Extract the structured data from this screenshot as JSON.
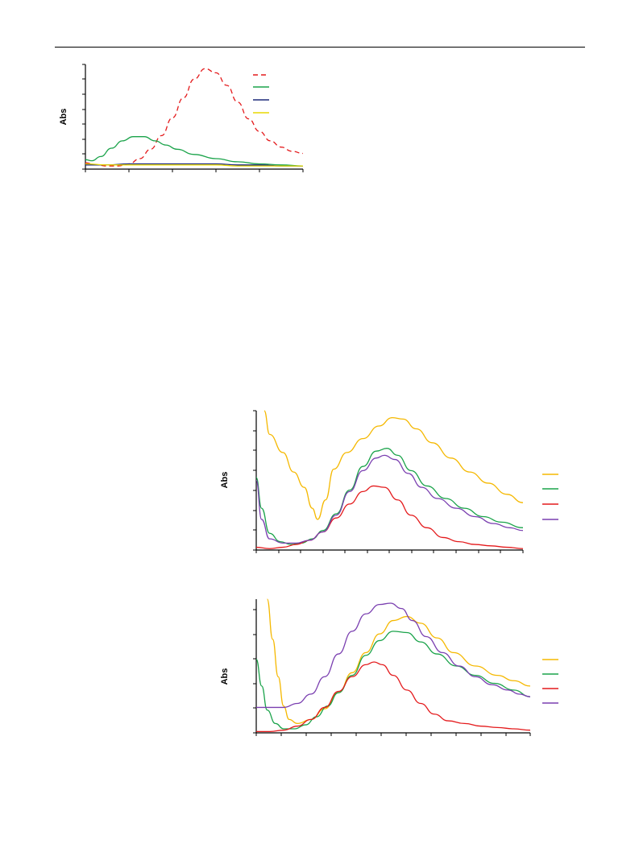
{
  "page": {
    "header_rule": true
  },
  "chart_data": [
    {
      "id": "chart1",
      "type": "line",
      "title": "",
      "xlabel": "",
      "ylabel": "Abs",
      "xlim": [
        0,
        1
      ],
      "ylim": [
        0,
        1
      ],
      "grid": false,
      "legend_placement": "top-right",
      "series": [
        {
          "color": "#e41a1c",
          "dash": "dashed",
          "x": [
            0.0,
            0.05,
            0.1,
            0.15,
            0.2,
            0.25,
            0.3,
            0.35,
            0.4,
            0.45,
            0.5,
            0.55,
            0.6,
            0.65,
            0.7,
            0.75,
            0.8,
            0.85,
            0.9,
            0.95,
            1.0
          ],
          "y": [
            0.06,
            0.04,
            0.03,
            0.03,
            0.05,
            0.1,
            0.19,
            0.32,
            0.49,
            0.68,
            0.86,
            0.96,
            0.92,
            0.8,
            0.64,
            0.48,
            0.36,
            0.27,
            0.21,
            0.17,
            0.15
          ]
        },
        {
          "color": "#1aa34a",
          "dash": "solid",
          "x": [
            0.0,
            0.03,
            0.07,
            0.12,
            0.17,
            0.22,
            0.27,
            0.32,
            0.37,
            0.42,
            0.5,
            0.6,
            0.7,
            0.8,
            0.9,
            1.0
          ],
          "y": [
            0.09,
            0.08,
            0.12,
            0.2,
            0.27,
            0.31,
            0.31,
            0.27,
            0.23,
            0.19,
            0.14,
            0.1,
            0.07,
            0.05,
            0.04,
            0.03
          ]
        },
        {
          "color": "#1f2a7a",
          "dash": "solid",
          "x": [
            0.0,
            0.1,
            0.2,
            0.3,
            0.4,
            0.5,
            0.6,
            0.7,
            0.8,
            0.9,
            1.0
          ],
          "y": [
            0.04,
            0.04,
            0.05,
            0.05,
            0.05,
            0.05,
            0.05,
            0.04,
            0.04,
            0.03,
            0.03
          ]
        },
        {
          "color": "#e8d800",
          "dash": "solid",
          "x": [
            0.0,
            0.1,
            0.2,
            0.3,
            0.4,
            0.5,
            0.6,
            0.7,
            0.8,
            0.9,
            1.0
          ],
          "y": [
            0.05,
            0.04,
            0.04,
            0.04,
            0.04,
            0.04,
            0.04,
            0.03,
            0.03,
            0.03,
            0.03
          ]
        }
      ]
    },
    {
      "id": "chart2",
      "type": "line",
      "title": "",
      "xlabel": "",
      "ylabel": "Abs",
      "xlim": [
        0,
        1
      ],
      "ylim": [
        0,
        1
      ],
      "grid": false,
      "legend_placement": "right",
      "series": [
        {
          "color": "#f5b800",
          "dash": "solid",
          "x": [
            0.03,
            0.05,
            0.1,
            0.14,
            0.18,
            0.21,
            0.23,
            0.26,
            0.29,
            0.34,
            0.4,
            0.46,
            0.51,
            0.55,
            0.6,
            0.66,
            0.73,
            0.8,
            0.87,
            0.94,
            1.0
          ],
          "y": [
            1.0,
            0.83,
            0.7,
            0.56,
            0.45,
            0.3,
            0.22,
            0.36,
            0.58,
            0.7,
            0.8,
            0.89,
            0.95,
            0.94,
            0.87,
            0.77,
            0.66,
            0.56,
            0.48,
            0.4,
            0.34
          ]
        },
        {
          "color": "#1aa34a",
          "dash": "solid",
          "x": [
            0.0,
            0.02,
            0.05,
            0.09,
            0.13,
            0.17,
            0.21,
            0.25,
            0.3,
            0.35,
            0.4,
            0.45,
            0.49,
            0.53,
            0.58,
            0.64,
            0.71,
            0.78,
            0.85,
            0.92,
            1.0
          ],
          "y": [
            0.52,
            0.3,
            0.12,
            0.06,
            0.04,
            0.05,
            0.08,
            0.14,
            0.26,
            0.43,
            0.6,
            0.71,
            0.73,
            0.68,
            0.57,
            0.46,
            0.37,
            0.3,
            0.24,
            0.2,
            0.16
          ]
        },
        {
          "color": "#e41a1c",
          "dash": "solid",
          "x": [
            0.0,
            0.05,
            0.1,
            0.15,
            0.2,
            0.25,
            0.3,
            0.35,
            0.4,
            0.44,
            0.48,
            0.53,
            0.58,
            0.64,
            0.7,
            0.76,
            0.82,
            0.88,
            0.94,
            1.0
          ],
          "y": [
            0.02,
            0.01,
            0.02,
            0.04,
            0.07,
            0.13,
            0.23,
            0.33,
            0.42,
            0.46,
            0.45,
            0.36,
            0.25,
            0.16,
            0.09,
            0.06,
            0.04,
            0.03,
            0.02,
            0.01
          ]
        },
        {
          "color": "#7a3fb0",
          "dash": "solid",
          "x": [
            0.0,
            0.02,
            0.05,
            0.1,
            0.15,
            0.2,
            0.25,
            0.3,
            0.35,
            0.4,
            0.45,
            0.48,
            0.52,
            0.57,
            0.62,
            0.68,
            0.75,
            0.82,
            0.89,
            0.95,
            1.0
          ],
          "y": [
            0.5,
            0.22,
            0.08,
            0.05,
            0.05,
            0.07,
            0.13,
            0.25,
            0.42,
            0.57,
            0.66,
            0.68,
            0.65,
            0.55,
            0.45,
            0.37,
            0.3,
            0.24,
            0.19,
            0.16,
            0.14
          ]
        }
      ]
    },
    {
      "id": "chart3",
      "type": "line",
      "title": "",
      "xlabel": "",
      "ylabel": "Abs",
      "xlim": [
        0,
        1
      ],
      "ylim": [
        0,
        1
      ],
      "grid": false,
      "legend_placement": "right",
      "series": [
        {
          "color": "#f5b800",
          "dash": "solid",
          "x": [
            0.04,
            0.06,
            0.08,
            0.1,
            0.12,
            0.15,
            0.2,
            0.25,
            0.3,
            0.35,
            0.4,
            0.45,
            0.5,
            0.55,
            0.6,
            0.66,
            0.72,
            0.8,
            0.88,
            0.94,
            1.0
          ],
          "y": [
            1.0,
            0.7,
            0.42,
            0.2,
            0.1,
            0.07,
            0.1,
            0.18,
            0.3,
            0.45,
            0.6,
            0.74,
            0.84,
            0.87,
            0.82,
            0.71,
            0.6,
            0.5,
            0.43,
            0.39,
            0.35
          ]
        },
        {
          "color": "#1aa34a",
          "dash": "solid",
          "x": [
            0.0,
            0.02,
            0.04,
            0.07,
            0.1,
            0.14,
            0.18,
            0.22,
            0.26,
            0.3,
            0.35,
            0.4,
            0.45,
            0.5,
            0.55,
            0.6,
            0.66,
            0.73,
            0.8,
            0.87,
            0.94,
            1.0
          ],
          "y": [
            0.55,
            0.35,
            0.17,
            0.07,
            0.03,
            0.03,
            0.06,
            0.12,
            0.2,
            0.3,
            0.43,
            0.58,
            0.69,
            0.76,
            0.75,
            0.68,
            0.59,
            0.5,
            0.43,
            0.37,
            0.32,
            0.27
          ]
        },
        {
          "color": "#e41a1c",
          "dash": "solid",
          "x": [
            0.0,
            0.05,
            0.1,
            0.15,
            0.2,
            0.25,
            0.3,
            0.35,
            0.4,
            0.43,
            0.46,
            0.5,
            0.55,
            0.6,
            0.65,
            0.7,
            0.76,
            0.82,
            0.88,
            0.94,
            1.0
          ],
          "y": [
            0.01,
            0.01,
            0.02,
            0.05,
            0.1,
            0.19,
            0.31,
            0.42,
            0.51,
            0.53,
            0.51,
            0.43,
            0.32,
            0.22,
            0.14,
            0.09,
            0.07,
            0.05,
            0.04,
            0.03,
            0.02
          ]
        },
        {
          "color": "#7a3fb0",
          "dash": "solid",
          "x": [
            0.0,
            0.05,
            0.1,
            0.15,
            0.2,
            0.25,
            0.3,
            0.35,
            0.4,
            0.45,
            0.49,
            0.53,
            0.57,
            0.62,
            0.68,
            0.74,
            0.8,
            0.86,
            0.92,
            0.96,
            1.0
          ],
          "y": [
            0.19,
            0.19,
            0.19,
            0.22,
            0.29,
            0.42,
            0.59,
            0.76,
            0.89,
            0.96,
            0.97,
            0.93,
            0.84,
            0.72,
            0.6,
            0.5,
            0.42,
            0.36,
            0.32,
            0.29,
            0.27
          ]
        }
      ]
    }
  ]
}
